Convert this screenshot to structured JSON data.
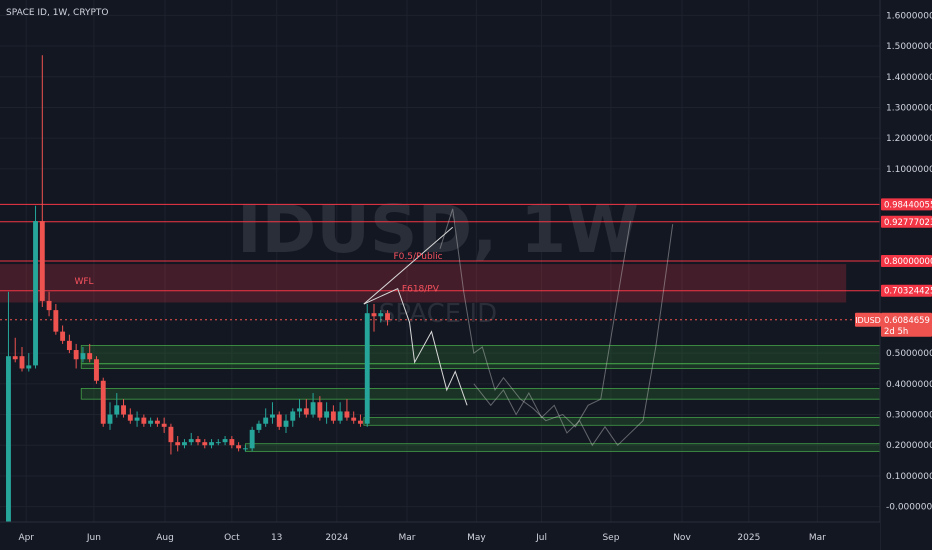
{
  "header": {
    "symbol_info": "SPACE ID, 1W, CRYPTO"
  },
  "watermark": {
    "ticker": "IDUSD, 1W",
    "name": "SPACE ID"
  },
  "colors": {
    "background": "#131722",
    "up": "#26a69a",
    "down": "#ef5350",
    "resistance_line": "#f23645",
    "support_zone": "#2e7d32",
    "axis_text": "#d1d4dc",
    "projection": "#c7c7c7"
  },
  "price_badge": {
    "symbol": "IDUSD",
    "price": "0.6084659",
    "countdown": "2d 5h"
  },
  "chart_data": {
    "type": "candlestick",
    "title": "SPACE ID, 1W, CRYPTO",
    "ylim": [
      -0.05,
      1.65
    ],
    "xlim": [
      0,
      1.04
    ],
    "y_ticks": [
      {
        "value": 1.6,
        "label": "1.600000000"
      },
      {
        "value": 1.5,
        "label": "1.500000000"
      },
      {
        "value": 1.4,
        "label": "1.400000000"
      },
      {
        "value": 1.3,
        "label": "1.300000000"
      },
      {
        "value": 1.2,
        "label": "1.200000000"
      },
      {
        "value": 1.1,
        "label": "1.100000000"
      },
      {
        "value": 0.5,
        "label": "0.500000000"
      },
      {
        "value": 0.4,
        "label": "0.400000000"
      },
      {
        "value": 0.3,
        "label": "0.300000000"
      },
      {
        "value": 0.2,
        "label": "0.200000000"
      },
      {
        "value": 0.1,
        "label": "0.100000000"
      },
      {
        "value": 0.0,
        "label": "-0.000000000"
      }
    ],
    "x_ticks": [
      {
        "t": 0.031,
        "label": "Apr"
      },
      {
        "t": 0.111,
        "label": "Jun"
      },
      {
        "t": 0.195,
        "label": "Aug"
      },
      {
        "t": 0.274,
        "label": "Oct"
      },
      {
        "t": 0.327,
        "label": "13"
      },
      {
        "t": 0.398,
        "label": "2024"
      },
      {
        "t": 0.481,
        "label": "Mar"
      },
      {
        "t": 0.563,
        "label": "May"
      },
      {
        "t": 0.64,
        "label": "Jul"
      },
      {
        "t": 0.722,
        "label": "Sep"
      },
      {
        "t": 0.806,
        "label": "Nov"
      },
      {
        "t": 0.885,
        "label": "2025"
      },
      {
        "t": 0.966,
        "label": "Mar"
      }
    ],
    "candles": [
      {
        "t": 0.01,
        "o": -0.06,
        "h": 0.7,
        "l": -0.06,
        "c": 0.49
      },
      {
        "t": 0.018,
        "o": 0.49,
        "h": 0.55,
        "l": 0.47,
        "c": 0.48
      },
      {
        "t": 0.026,
        "o": 0.49,
        "h": 0.52,
        "l": 0.44,
        "c": 0.45
      },
      {
        "t": 0.034,
        "o": 0.45,
        "h": 0.5,
        "l": 0.44,
        "c": 0.46
      },
      {
        "t": 0.042,
        "o": 0.46,
        "h": 0.98,
        "l": 0.45,
        "c": 0.93
      },
      {
        "t": 0.05,
        "o": 0.93,
        "h": 1.47,
        "l": 0.65,
        "c": 0.67
      },
      {
        "t": 0.058,
        "o": 0.67,
        "h": 0.7,
        "l": 0.62,
        "c": 0.64
      },
      {
        "t": 0.066,
        "o": 0.64,
        "h": 0.66,
        "l": 0.56,
        "c": 0.57
      },
      {
        "t": 0.074,
        "o": 0.57,
        "h": 0.59,
        "l": 0.53,
        "c": 0.54
      },
      {
        "t": 0.082,
        "o": 0.54,
        "h": 0.56,
        "l": 0.5,
        "c": 0.51
      },
      {
        "t": 0.09,
        "o": 0.51,
        "h": 0.53,
        "l": 0.45,
        "c": 0.48
      },
      {
        "t": 0.098,
        "o": 0.48,
        "h": 0.52,
        "l": 0.47,
        "c": 0.5
      },
      {
        "t": 0.106,
        "o": 0.5,
        "h": 0.53,
        "l": 0.47,
        "c": 0.48
      },
      {
        "t": 0.114,
        "o": 0.48,
        "h": 0.49,
        "l": 0.4,
        "c": 0.41
      },
      {
        "t": 0.122,
        "o": 0.41,
        "h": 0.42,
        "l": 0.26,
        "c": 0.27
      },
      {
        "t": 0.13,
        "o": 0.27,
        "h": 0.34,
        "l": 0.25,
        "c": 0.3
      },
      {
        "t": 0.138,
        "o": 0.3,
        "h": 0.37,
        "l": 0.29,
        "c": 0.33
      },
      {
        "t": 0.146,
        "o": 0.33,
        "h": 0.35,
        "l": 0.29,
        "c": 0.3
      },
      {
        "t": 0.154,
        "o": 0.3,
        "h": 0.32,
        "l": 0.27,
        "c": 0.28
      },
      {
        "t": 0.162,
        "o": 0.28,
        "h": 0.31,
        "l": 0.26,
        "c": 0.29
      },
      {
        "t": 0.17,
        "o": 0.29,
        "h": 0.3,
        "l": 0.26,
        "c": 0.27
      },
      {
        "t": 0.178,
        "o": 0.27,
        "h": 0.29,
        "l": 0.26,
        "c": 0.28
      },
      {
        "t": 0.186,
        "o": 0.28,
        "h": 0.29,
        "l": 0.26,
        "c": 0.27
      },
      {
        "t": 0.194,
        "o": 0.27,
        "h": 0.29,
        "l": 0.24,
        "c": 0.26
      },
      {
        "t": 0.202,
        "o": 0.26,
        "h": 0.27,
        "l": 0.17,
        "c": 0.21
      },
      {
        "t": 0.21,
        "o": 0.21,
        "h": 0.23,
        "l": 0.18,
        "c": 0.2
      },
      {
        "t": 0.218,
        "o": 0.2,
        "h": 0.22,
        "l": 0.19,
        "c": 0.21
      },
      {
        "t": 0.226,
        "o": 0.21,
        "h": 0.24,
        "l": 0.2,
        "c": 0.22
      },
      {
        "t": 0.234,
        "o": 0.22,
        "h": 0.23,
        "l": 0.2,
        "c": 0.21
      },
      {
        "t": 0.242,
        "o": 0.21,
        "h": 0.22,
        "l": 0.19,
        "c": 0.2
      },
      {
        "t": 0.25,
        "o": 0.2,
        "h": 0.22,
        "l": 0.19,
        "c": 0.21
      },
      {
        "t": 0.258,
        "o": 0.21,
        "h": 0.22,
        "l": 0.2,
        "c": 0.21
      },
      {
        "t": 0.266,
        "o": 0.21,
        "h": 0.23,
        "l": 0.2,
        "c": 0.22
      },
      {
        "t": 0.274,
        "o": 0.22,
        "h": 0.23,
        "l": 0.19,
        "c": 0.2
      },
      {
        "t": 0.282,
        "o": 0.2,
        "h": 0.21,
        "l": 0.18,
        "c": 0.19
      },
      {
        "t": 0.29,
        "o": 0.19,
        "h": 0.2,
        "l": 0.18,
        "c": 0.19
      },
      {
        "t": 0.298,
        "o": 0.19,
        "h": 0.26,
        "l": 0.18,
        "c": 0.25
      },
      {
        "t": 0.306,
        "o": 0.25,
        "h": 0.28,
        "l": 0.24,
        "c": 0.27
      },
      {
        "t": 0.314,
        "o": 0.27,
        "h": 0.32,
        "l": 0.26,
        "c": 0.29
      },
      {
        "t": 0.322,
        "o": 0.29,
        "h": 0.34,
        "l": 0.27,
        "c": 0.3
      },
      {
        "t": 0.33,
        "o": 0.3,
        "h": 0.31,
        "l": 0.25,
        "c": 0.26
      },
      {
        "t": 0.338,
        "o": 0.26,
        "h": 0.3,
        "l": 0.24,
        "c": 0.28
      },
      {
        "t": 0.346,
        "o": 0.28,
        "h": 0.32,
        "l": 0.26,
        "c": 0.31
      },
      {
        "t": 0.354,
        "o": 0.31,
        "h": 0.35,
        "l": 0.29,
        "c": 0.32
      },
      {
        "t": 0.362,
        "o": 0.32,
        "h": 0.35,
        "l": 0.29,
        "c": 0.3
      },
      {
        "t": 0.37,
        "o": 0.3,
        "h": 0.37,
        "l": 0.29,
        "c": 0.34
      },
      {
        "t": 0.378,
        "o": 0.34,
        "h": 0.36,
        "l": 0.28,
        "c": 0.29
      },
      {
        "t": 0.386,
        "o": 0.29,
        "h": 0.34,
        "l": 0.27,
        "c": 0.31
      },
      {
        "t": 0.394,
        "o": 0.31,
        "h": 0.33,
        "l": 0.27,
        "c": 0.28
      },
      {
        "t": 0.402,
        "o": 0.28,
        "h": 0.34,
        "l": 0.27,
        "c": 0.31
      },
      {
        "t": 0.41,
        "o": 0.31,
        "h": 0.35,
        "l": 0.28,
        "c": 0.29
      },
      {
        "t": 0.418,
        "o": 0.29,
        "h": 0.31,
        "l": 0.27,
        "c": 0.28
      },
      {
        "t": 0.426,
        "o": 0.28,
        "h": 0.3,
        "l": 0.26,
        "c": 0.27
      },
      {
        "t": 0.434,
        "o": 0.27,
        "h": 0.66,
        "l": 0.26,
        "c": 0.63
      },
      {
        "t": 0.442,
        "o": 0.63,
        "h": 0.66,
        "l": 0.57,
        "c": 0.62
      },
      {
        "t": 0.45,
        "o": 0.62,
        "h": 0.64,
        "l": 0.6,
        "c": 0.63
      },
      {
        "t": 0.458,
        "o": 0.63,
        "h": 0.64,
        "l": 0.59,
        "c": 0.608
      }
    ],
    "horizontal_levels": [
      {
        "value": 0.98440056,
        "label": "0.984400558",
        "kind": "resistance"
      },
      {
        "value": 0.92777023,
        "label": "0.927770237",
        "kind": "resistance"
      },
      {
        "value": 0.8,
        "label": "0.800000000",
        "kind": "resistance"
      },
      {
        "value": 0.70324425,
        "label": "0.703244253",
        "kind": "resistance"
      },
      {
        "value": 0.6084659,
        "label": "0.6084659",
        "kind": "current"
      }
    ],
    "resistance_zone": {
      "from": 0.665,
      "to": 0.79,
      "t_start": 0.0,
      "t_end": 1.0
    },
    "support_zones": [
      {
        "from": 0.466,
        "to": 0.525,
        "t_start": 0.096
      },
      {
        "from": 0.45,
        "to": 0.465,
        "t_start": 0.096
      },
      {
        "from": 0.35,
        "to": 0.385,
        "t_start": 0.096
      },
      {
        "from": 0.265,
        "to": 0.29,
        "t_start": 0.43
      },
      {
        "from": 0.18,
        "to": 0.205,
        "t_start": 0.29
      }
    ],
    "annotations": [
      {
        "text": "WFL",
        "t": 0.088,
        "y": 0.725
      },
      {
        "text": "F0.5/Public",
        "t": 0.465,
        "y": 0.807
      },
      {
        "text": "F618/PV",
        "t": 0.475,
        "y": 0.7
      }
    ],
    "projection_paths": [
      [
        [
          0.43,
          0.66
        ],
        [
          0.535,
          0.91
        ]
      ],
      [
        [
          0.43,
          0.66
        ],
        [
          0.47,
          0.71
        ],
        [
          0.484,
          0.6
        ],
        [
          0.49,
          0.47
        ],
        [
          0.51,
          0.57
        ],
        [
          0.528,
          0.38
        ],
        [
          0.538,
          0.44
        ],
        [
          0.552,
          0.33
        ]
      ],
      [
        [
          0.52,
          0.84
        ],
        [
          0.535,
          0.97
        ],
        [
          0.548,
          0.7
        ],
        [
          0.56,
          0.5
        ],
        [
          0.57,
          0.52
        ],
        [
          0.585,
          0.38
        ],
        [
          0.595,
          0.42
        ],
        [
          0.615,
          0.35
        ],
        [
          0.63,
          0.32
        ],
        [
          0.645,
          0.28
        ],
        [
          0.665,
          0.3
        ],
        [
          0.68,
          0.26
        ],
        [
          0.695,
          0.33
        ],
        [
          0.71,
          0.35
        ],
        [
          0.725,
          0.6
        ],
        [
          0.745,
          0.93
        ]
      ],
      [
        [
          0.56,
          0.4
        ],
        [
          0.58,
          0.33
        ],
        [
          0.595,
          0.38
        ],
        [
          0.61,
          0.3
        ],
        [
          0.625,
          0.37
        ],
        [
          0.64,
          0.29
        ],
        [
          0.655,
          0.33
        ],
        [
          0.67,
          0.24
        ],
        [
          0.685,
          0.28
        ],
        [
          0.7,
          0.2
        ],
        [
          0.715,
          0.26
        ],
        [
          0.73,
          0.2
        ],
        [
          0.745,
          0.24
        ],
        [
          0.76,
          0.28
        ],
        [
          0.775,
          0.52
        ],
        [
          0.795,
          0.92
        ]
      ]
    ]
  }
}
